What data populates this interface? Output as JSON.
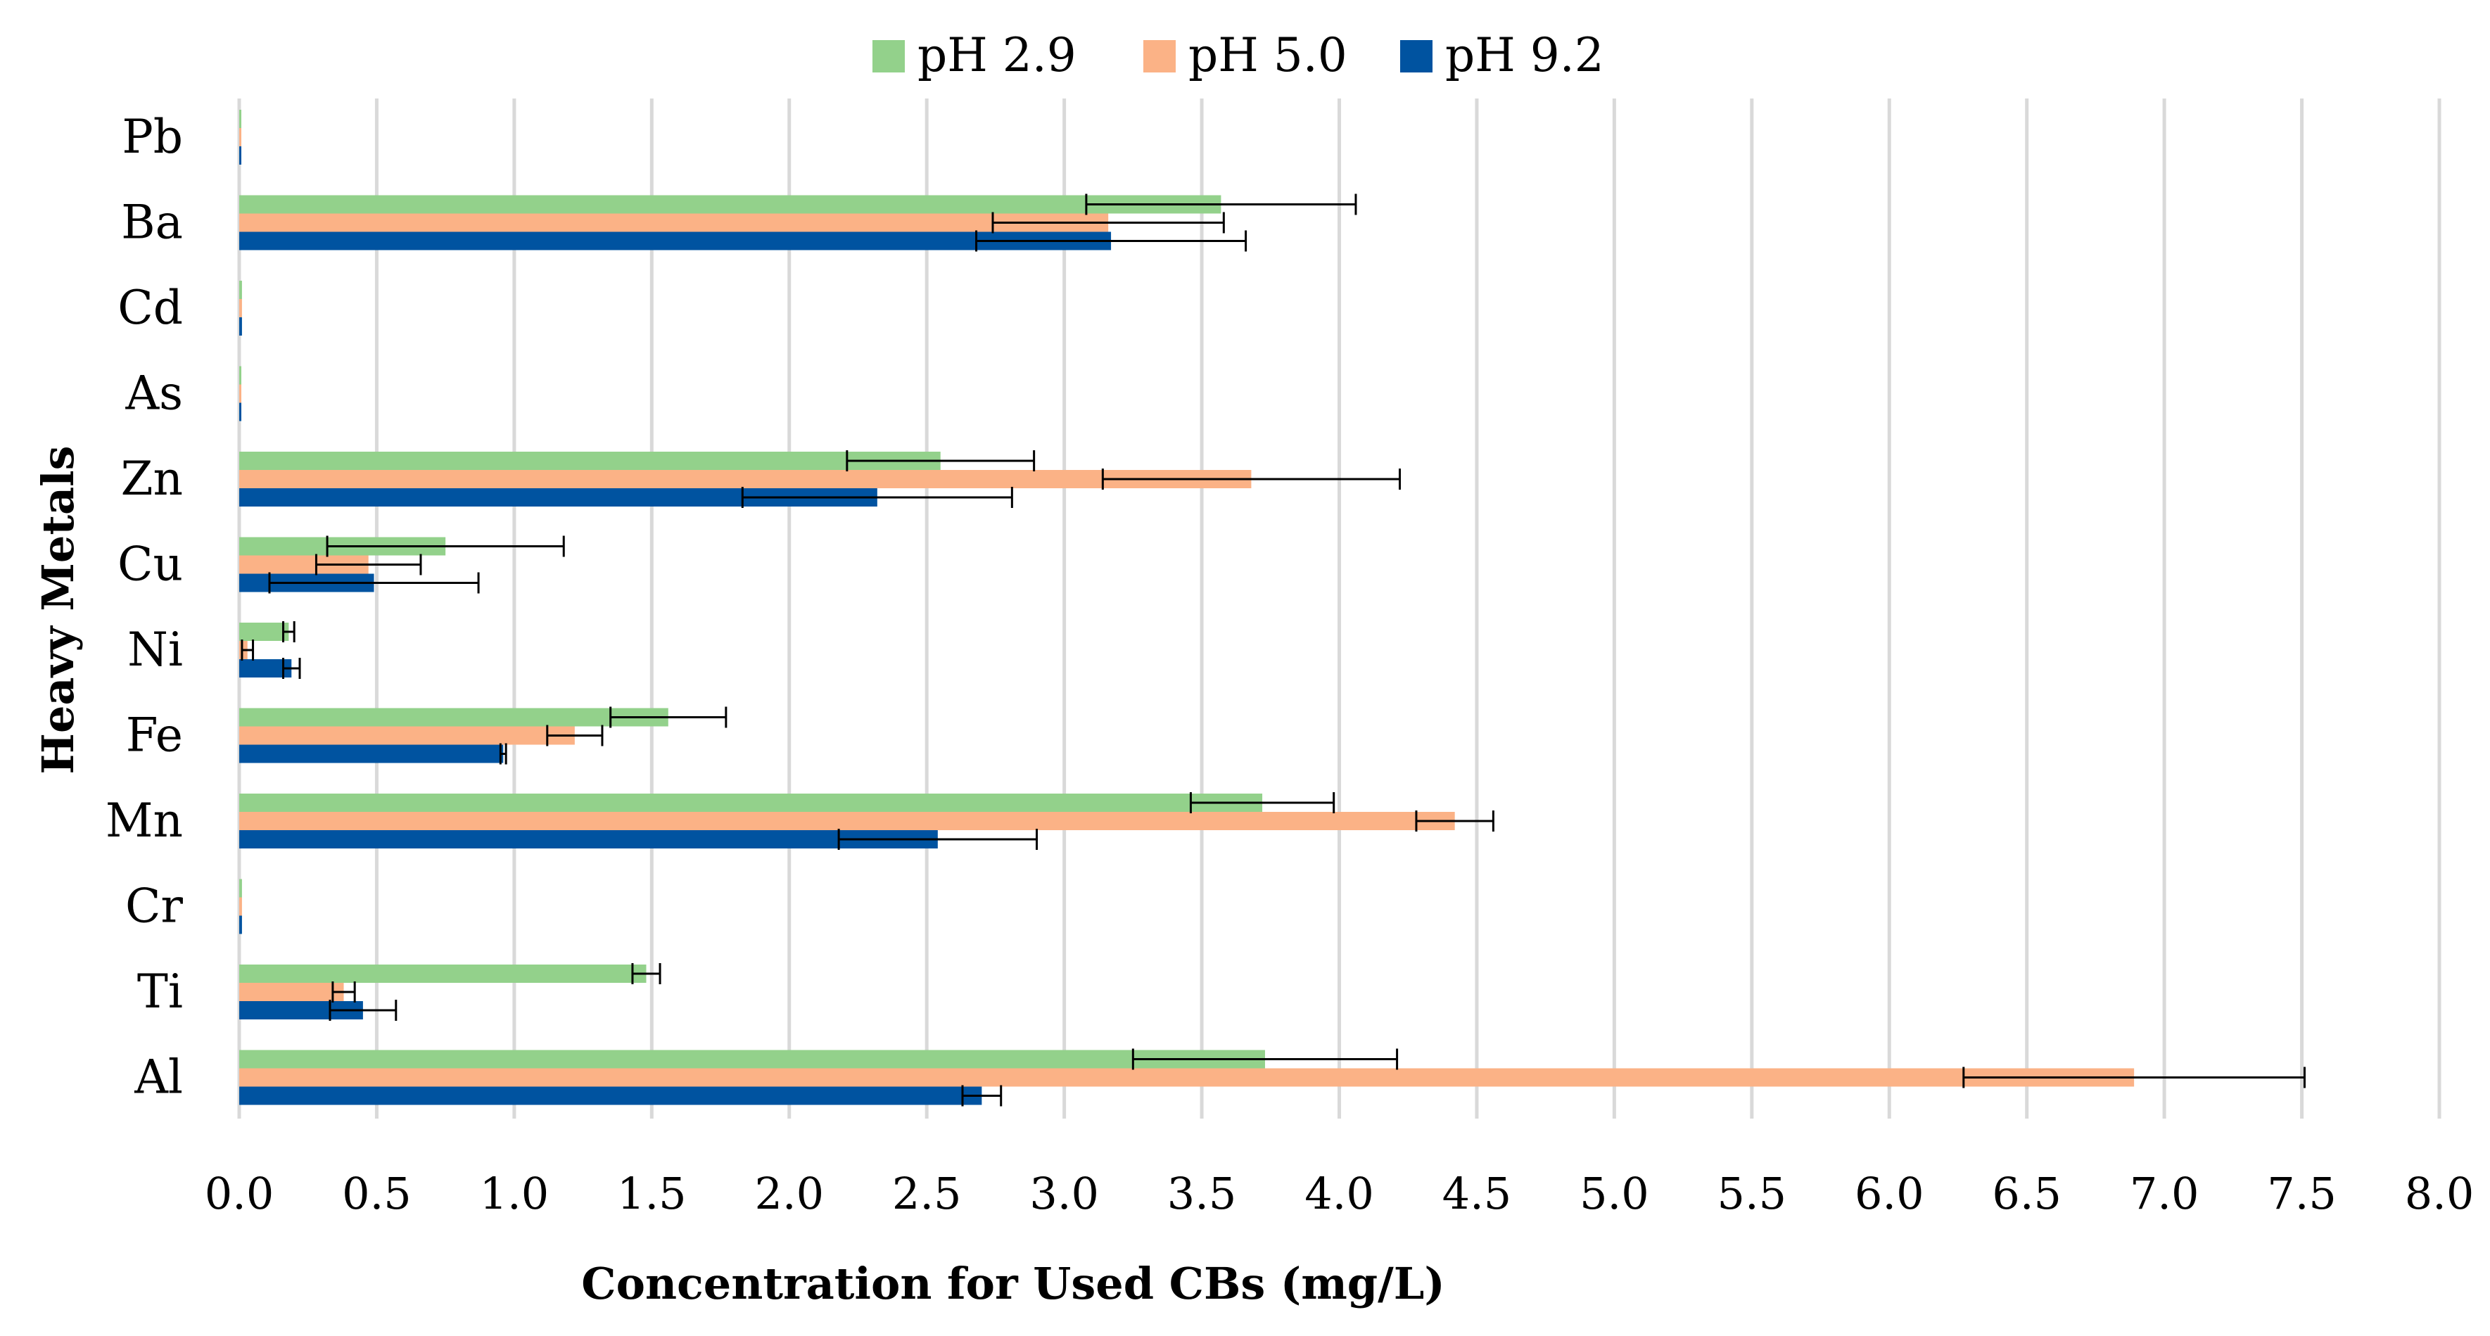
{
  "chart_data": {
    "type": "bar",
    "orientation": "horizontal",
    "title": "",
    "xlabel": "Concentration for Used CBs (mg/L)",
    "ylabel": "Heavy Metals",
    "xlim": [
      0,
      8
    ],
    "xticks": [
      "0.0",
      "0.5",
      "1.0",
      "1.5",
      "2.0",
      "2.5",
      "3.0",
      "3.5",
      "4.0",
      "4.5",
      "5.0",
      "5.5",
      "6.0",
      "6.5",
      "7.0",
      "7.5",
      "8.0"
    ],
    "grid": true,
    "legend_position": "top",
    "categories": [
      "Pb",
      "Ba",
      "Cd",
      "As",
      "Zn",
      "Cu",
      "Ni",
      "Fe",
      "Mn",
      "Cr",
      "Ti",
      "Al"
    ],
    "series": [
      {
        "name": "pH 2.9",
        "color": "#93d18b",
        "values": [
          0.0,
          3.57,
          0.01,
          0.0,
          2.55,
          0.75,
          0.18,
          1.56,
          3.72,
          0.01,
          1.48,
          3.73
        ],
        "errors": [
          0.0,
          0.49,
          0.0,
          0.0,
          0.34,
          0.43,
          0.02,
          0.21,
          0.26,
          0.0,
          0.05,
          0.48
        ]
      },
      {
        "name": "pH 5.0",
        "color": "#fbb286",
        "values": [
          0.0,
          3.16,
          0.01,
          0.0,
          3.68,
          0.47,
          0.03,
          1.22,
          4.42,
          0.01,
          0.38,
          6.89
        ],
        "errors": [
          0.0,
          0.42,
          0.0,
          0.0,
          0.54,
          0.19,
          0.02,
          0.1,
          0.14,
          0.0,
          0.04,
          0.62
        ]
      },
      {
        "name": "pH 9.2",
        "color": "#0053a0",
        "values": [
          0.0,
          3.17,
          0.01,
          0.0,
          2.32,
          0.49,
          0.19,
          0.96,
          2.54,
          0.01,
          0.45,
          2.7
        ],
        "errors": [
          0.0,
          0.49,
          0.0,
          0.0,
          0.49,
          0.38,
          0.03,
          0.01,
          0.36,
          0.0,
          0.12,
          0.07
        ]
      }
    ]
  }
}
